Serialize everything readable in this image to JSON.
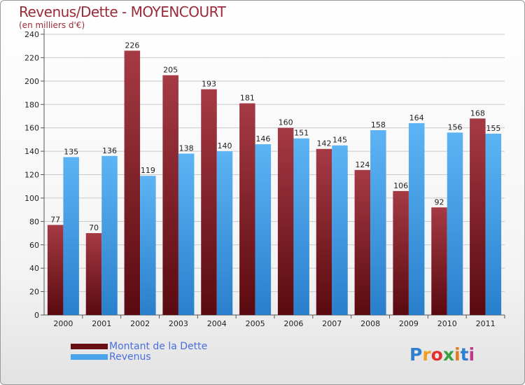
{
  "chart_data": {
    "type": "bar",
    "title": "Revenus/Dette - MOYENCOURT",
    "subtitle": "(en milliers d'€)",
    "categories": [
      "2000",
      "2001",
      "2002",
      "2003",
      "2004",
      "2005",
      "2006",
      "2007",
      "2008",
      "2009",
      "2010",
      "2011"
    ],
    "series": [
      {
        "name": "Montant de la Dette",
        "color": "#7a1a22",
        "values": [
          77,
          70,
          226,
          205,
          193,
          181,
          160,
          142,
          124,
          106,
          92,
          168
        ]
      },
      {
        "name": "Revenus",
        "color": "#4aa3e8",
        "values": [
          135,
          136,
          119,
          138,
          140,
          146,
          151,
          145,
          158,
          164,
          156,
          155
        ]
      }
    ],
    "ylim": [
      0,
      240
    ],
    "yticks": [
      0,
      20,
      40,
      60,
      80,
      100,
      120,
      140,
      160,
      180,
      200,
      220,
      240
    ],
    "grid": true,
    "legend": "bottom-left"
  },
  "logo": {
    "letters": [
      {
        "ch": "P",
        "color": "#2f7fd0"
      },
      {
        "ch": "r",
        "color": "#f0a020"
      },
      {
        "ch": "o",
        "color": "#e03030"
      },
      {
        "ch": "x",
        "color": "#3aa040"
      },
      {
        "ch": "i",
        "color": "#e07a20"
      },
      {
        "ch": "t",
        "color": "#2f7fd0"
      },
      {
        "ch": "i",
        "color": "#c03a8a"
      }
    ]
  }
}
